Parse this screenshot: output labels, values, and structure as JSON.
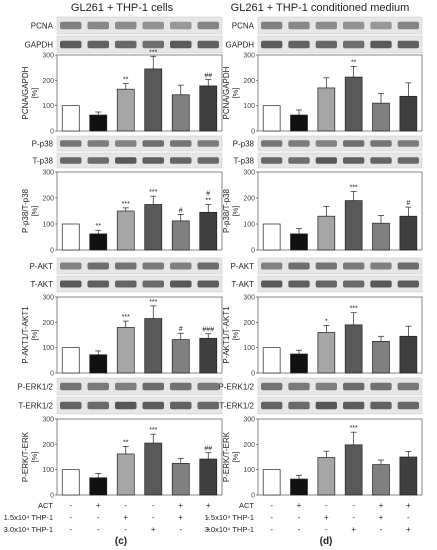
{
  "figure": {
    "panel_titles": [
      "GL261 + THP-1 cells",
      "GL261 + THP-1 conditioned medium"
    ],
    "panel_letters": [
      "(c)",
      "(d)"
    ],
    "treatment_rows": [
      {
        "label": "ACT",
        "signs": [
          "-",
          "+",
          "-",
          "-",
          "+",
          "+"
        ]
      },
      {
        "label": "1.5x10⁴ THP-1",
        "signs": [
          "-",
          "-",
          "+",
          "-",
          "+",
          "-"
        ]
      },
      {
        "label": "3.0x10⁴ THP-1",
        "signs": [
          "-",
          "-",
          "-",
          "+",
          "-",
          "+"
        ]
      }
    ],
    "bar_fills": [
      "#ffffff",
      "#111111",
      "#a6a6a6",
      "#595959",
      "#808080",
      "#3f3f3f"
    ],
    "blot_labels": [
      [
        "PCNA",
        "GAPDH"
      ],
      [
        "P-p38",
        "T-p38"
      ],
      [
        "P-AKT",
        "T-AKT"
      ],
      [
        "P-ERK1/2",
        "T-ERK1/2"
      ]
    ]
  },
  "chart_data": [
    {
      "type": "bar",
      "panel": "c",
      "ylabel": "PCNA/GAPDH [%]",
      "ylim": [
        0,
        300
      ],
      "yticks": [
        0,
        100,
        200,
        300
      ],
      "categories": [
        "1",
        "2",
        "3",
        "4",
        "5",
        "6"
      ],
      "values": [
        100,
        63,
        165,
        245,
        143,
        178
      ],
      "errors": [
        0,
        12,
        22,
        50,
        38,
        25
      ],
      "annotations": [
        "",
        "",
        "**",
        "***",
        "",
        "##"
      ]
    },
    {
      "type": "bar",
      "panel": "d",
      "ylabel": "PCNA/GAPDH [%]",
      "ylim": [
        0,
        300
      ],
      "yticks": [
        0,
        100,
        200,
        300
      ],
      "categories": [
        "1",
        "2",
        "3",
        "4",
        "5",
        "6"
      ],
      "values": [
        100,
        63,
        170,
        213,
        110,
        137
      ],
      "errors": [
        0,
        20,
        40,
        42,
        38,
        53
      ],
      "annotations": [
        "",
        "",
        "",
        "**",
        "",
        ""
      ]
    },
    {
      "type": "bar",
      "panel": "c",
      "ylabel": "P-p38/T-p38 [%]",
      "ylim": [
        0,
        300
      ],
      "yticks": [
        0,
        100,
        200,
        300
      ],
      "categories": [
        "1",
        "2",
        "3",
        "4",
        "5",
        "6"
      ],
      "values": [
        100,
        62,
        150,
        175,
        112,
        145
      ],
      "errors": [
        0,
        14,
        12,
        32,
        25,
        30
      ],
      "annotations": [
        "",
        "**",
        "***",
        "***",
        "#",
        "#\n**"
      ]
    },
    {
      "type": "bar",
      "panel": "d",
      "ylabel": "P-p38/T-p38 [%]",
      "ylim": [
        0,
        300
      ],
      "yticks": [
        0,
        100,
        200,
        300
      ],
      "categories": [
        "1",
        "2",
        "3",
        "4",
        "5",
        "6"
      ],
      "values": [
        100,
        62,
        130,
        190,
        103,
        130
      ],
      "errors": [
        0,
        20,
        38,
        35,
        30,
        35
      ],
      "annotations": [
        "",
        "",
        "",
        "***",
        "",
        "#"
      ]
    },
    {
      "type": "bar",
      "panel": "c",
      "ylabel": "P-AKT1/T-AKT1 [%]",
      "ylim": [
        0,
        300
      ],
      "yticks": [
        0,
        100,
        200,
        300
      ],
      "categories": [
        "1",
        "2",
        "3",
        "4",
        "5",
        "6"
      ],
      "values": [
        100,
        72,
        180,
        215,
        132,
        137
      ],
      "errors": [
        0,
        15,
        25,
        50,
        25,
        18
      ],
      "annotations": [
        "",
        "",
        "***",
        "***",
        "#",
        "###"
      ]
    },
    {
      "type": "bar",
      "panel": "d",
      "ylabel": "P-AKT1/T-AKT1 [%]",
      "ylim": [
        0,
        300
      ],
      "yticks": [
        0,
        100,
        200,
        300
      ],
      "categories": [
        "1",
        "2",
        "3",
        "4",
        "5",
        "6"
      ],
      "values": [
        100,
        75,
        160,
        190,
        125,
        145
      ],
      "errors": [
        0,
        15,
        28,
        48,
        20,
        40
      ],
      "annotations": [
        "",
        "",
        "*",
        "***",
        "",
        ""
      ]
    },
    {
      "type": "bar",
      "panel": "c",
      "ylabel": "P-ERK/T-ERK [%]",
      "ylim": [
        0,
        300
      ],
      "yticks": [
        0,
        100,
        200,
        300
      ],
      "categories": [
        "1",
        "2",
        "3",
        "4",
        "5",
        "6"
      ],
      "values": [
        100,
        68,
        162,
        205,
        125,
        142
      ],
      "errors": [
        0,
        17,
        30,
        35,
        20,
        25
      ],
      "annotations": [
        "",
        "",
        "**",
        "***",
        "",
        "##"
      ]
    },
    {
      "type": "bar",
      "panel": "d",
      "ylabel": "P-ERK/T-ERK [%]",
      "ylim": [
        0,
        300
      ],
      "yticks": [
        0,
        100,
        200,
        300
      ],
      "categories": [
        "1",
        "2",
        "3",
        "4",
        "5",
        "6"
      ],
      "values": [
        100,
        63,
        148,
        198,
        120,
        150
      ],
      "errors": [
        0,
        15,
        25,
        50,
        18,
        22
      ],
      "annotations": [
        "",
        "",
        "",
        "***",
        "",
        ""
      ]
    }
  ]
}
